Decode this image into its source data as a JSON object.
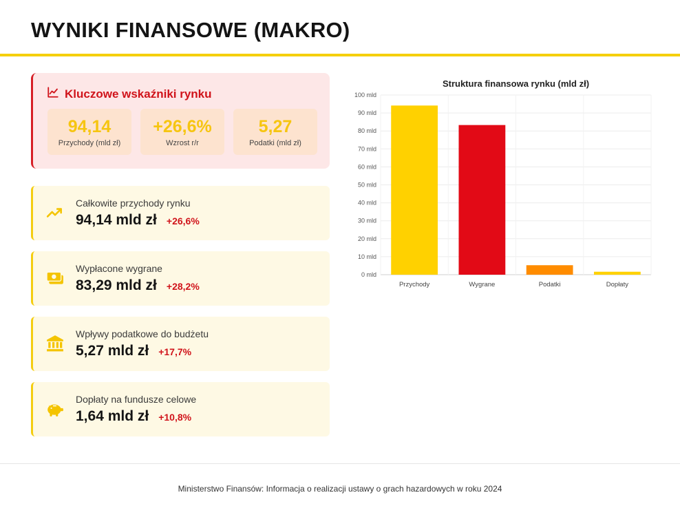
{
  "page": {
    "title": "WYNIKI FINANSOWE (MAKRO)"
  },
  "kpi": {
    "title": "Kluczowe wskaźniki rynku",
    "boxes": [
      {
        "value": "94,14",
        "label": "Przychody (mld zł)"
      },
      {
        "value": "+26,6%",
        "label": "Wzrost r/r"
      },
      {
        "value": "5,27",
        "label": "Podatki (mld zł)"
      }
    ]
  },
  "cards": [
    {
      "icon": "trending-up-icon",
      "label": "Całkowite przychody rynku",
      "value": "94,14 mld zł",
      "change": "+26,6%"
    },
    {
      "icon": "money-icon",
      "label": "Wypłacone wygrane",
      "value": "83,29 mld zł",
      "change": "+28,2%"
    },
    {
      "icon": "bank-icon",
      "label": "Wpływy podatkowe do budżetu",
      "value": "5,27 mld zł",
      "change": "+17,7%"
    },
    {
      "icon": "piggy-bank-icon",
      "label": "Dopłaty na fundusze celowe",
      "value": "1,64 mld zł",
      "change": "+10,8%"
    }
  ],
  "colors": {
    "accent_yellow": "#f5cf0c",
    "accent_red": "#d0131a",
    "orange": "#ff8c00"
  },
  "chart_data": {
    "type": "bar",
    "title": "Struktura finansowa rynku (mld zł)",
    "categories": [
      "Przychody",
      "Wygrane",
      "Podatki",
      "Dopłaty"
    ],
    "values": [
      94.14,
      83.29,
      5.27,
      1.64
    ],
    "bar_colors": [
      "#ffd100",
      "#e20a16",
      "#ff8c00",
      "#ffd100"
    ],
    "ylim": [
      0,
      100
    ],
    "yticks": [
      "0 mld",
      "10 mld",
      "20 mld",
      "30 mld",
      "40 mld",
      "50 mld",
      "60 mld",
      "70 mld",
      "80 mld",
      "90 mld",
      "100 mld"
    ],
    "grid": true,
    "legend": "none"
  },
  "footer": {
    "text": "Ministerstwo Finansów: Informacja o realizacji ustawy o grach hazardowych w roku 2024"
  }
}
